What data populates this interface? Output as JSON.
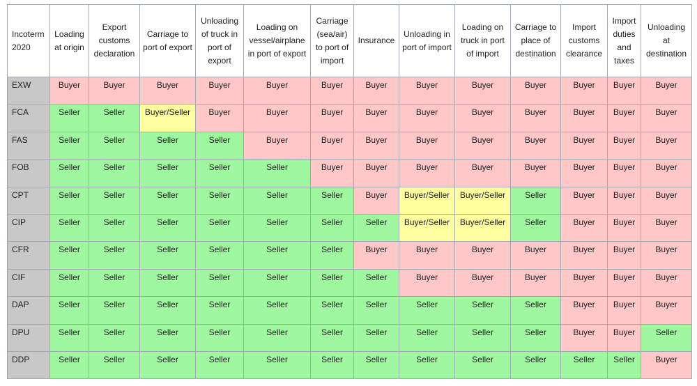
{
  "table": {
    "headers": [
      "Incoterm 2020",
      "Loading at origin",
      "Export customs declaration",
      "Carriage to port of export",
      "Unloading of truck in port of export",
      "Loading on vessel/airplane in port of export",
      "Carriage (sea/air) to port of import",
      "Insurance",
      "Unloading in port of import",
      "Loading on truck in port of import",
      "Carriage to place of destination",
      "Import customs clearance",
      "Import duties and taxes",
      "Unloading at destination"
    ],
    "column_widths": [],
    "rows": [
      {
        "term": "EXW",
        "cells": [
          "Buyer",
          "Buyer",
          "Buyer",
          "Buyer",
          "Buyer",
          "Buyer",
          "Buyer",
          "Buyer",
          "Buyer",
          "Buyer",
          "Buyer",
          "Buyer",
          "Buyer"
        ]
      },
      {
        "term": "FCA",
        "cells": [
          "Seller",
          "Seller",
          "Buyer/Seller",
          "Buyer",
          "Buyer",
          "Buyer",
          "Buyer",
          "Buyer",
          "Buyer",
          "Buyer",
          "Buyer",
          "Buyer",
          "Buyer"
        ]
      },
      {
        "term": "FAS",
        "cells": [
          "Seller",
          "Seller",
          "Seller",
          "Seller",
          "Buyer",
          "Buyer",
          "Buyer",
          "Buyer",
          "Buyer",
          "Buyer",
          "Buyer",
          "Buyer",
          "Buyer"
        ]
      },
      {
        "term": "FOB",
        "cells": [
          "Seller",
          "Seller",
          "Seller",
          "Seller",
          "Seller",
          "Buyer",
          "Buyer",
          "Buyer",
          "Buyer",
          "Buyer",
          "Buyer",
          "Buyer",
          "Buyer"
        ]
      },
      {
        "term": "CPT",
        "cells": [
          "Seller",
          "Seller",
          "Seller",
          "Seller",
          "Seller",
          "Seller",
          "Buyer",
          "Buyer/Seller",
          "Buyer/Seller",
          "Seller",
          "Buyer",
          "Buyer",
          "Buyer"
        ]
      },
      {
        "term": "CIP",
        "cells": [
          "Seller",
          "Seller",
          "Seller",
          "Seller",
          "Seller",
          "Seller",
          "Seller",
          "Buyer/Seller",
          "Buyer/Seller",
          "Seller",
          "Buyer",
          "Buyer",
          "Buyer"
        ]
      },
      {
        "term": "CFR",
        "cells": [
          "Seller",
          "Seller",
          "Seller",
          "Seller",
          "Seller",
          "Seller",
          "Buyer",
          "Buyer",
          "Buyer",
          "Buyer",
          "Buyer",
          "Buyer",
          "Buyer"
        ]
      },
      {
        "term": "CIF",
        "cells": [
          "Seller",
          "Seller",
          "Seller",
          "Seller",
          "Seller",
          "Seller",
          "Seller",
          "Buyer",
          "Buyer",
          "Buyer",
          "Buyer",
          "Buyer",
          "Buyer"
        ]
      },
      {
        "term": "DAP",
        "cells": [
          "Seller",
          "Seller",
          "Seller",
          "Seller",
          "Seller",
          "Seller",
          "Seller",
          "Seller",
          "Seller",
          "Seller",
          "Buyer",
          "Buyer",
          "Buyer"
        ]
      },
      {
        "term": "DPU",
        "cells": [
          "Seller",
          "Seller",
          "Seller",
          "Seller",
          "Seller",
          "Seller",
          "Seller",
          "Seller",
          "Seller",
          "Seller",
          "Buyer",
          "Buyer",
          "Seller"
        ]
      },
      {
        "term": "DDP",
        "cells": [
          "Seller",
          "Seller",
          "Seller",
          "Seller",
          "Seller",
          "Seller",
          "Seller",
          "Seller",
          "Seller",
          "Seller",
          "Seller",
          "Seller",
          "Buyer"
        ]
      }
    ]
  },
  "colors": {
    "Buyer": "#ffc7c7",
    "Seller": "#9ff89f",
    "Buyer/Seller": "#ffff9f",
    "term_cell": "#c8c8c8",
    "border": "#a2a9b1"
  }
}
